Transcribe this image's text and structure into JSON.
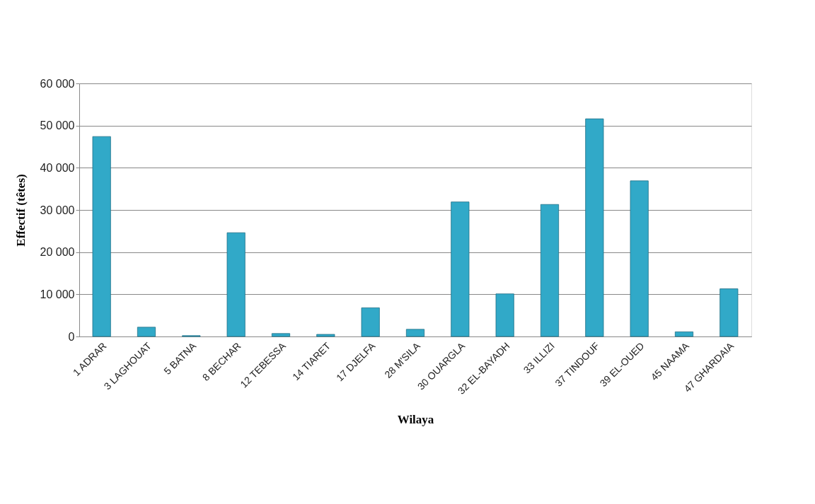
{
  "chart_data": {
    "type": "bar",
    "xlabel": "Wilaya",
    "ylabel": "Effectif (têtes)",
    "categories": [
      "1 ADRAR",
      "3 LAGHOUAT",
      "5 BATNA",
      "8 BECHAR",
      "12 TEBESSA",
      "14 TIARET",
      "17 DJELFA",
      "28 M'SILA",
      "30 OUARGLA",
      "32 EL-BAYADH",
      "33 ILLIZI",
      "37 TINDOUF",
      "39 EL-OUED",
      "45 NAAMA",
      "47 GHARDAIA"
    ],
    "values": [
      47400,
      2200,
      200,
      24600,
      700,
      500,
      6800,
      1700,
      31900,
      10100,
      31300,
      51600,
      36900,
      1100,
      11300
    ],
    "color": "#31a9c8",
    "ylim": [
      0,
      60000
    ],
    "yticks": [
      0,
      {
        "value": 10000,
        "label": "10 000"
      },
      {
        "value": 20000,
        "label": "20 000"
      },
      {
        "value": 30000,
        "label": "30 000"
      },
      {
        "value": 40000,
        "label": "40 000"
      },
      {
        "value": 50000,
        "label": "50 000"
      },
      {
        "value": 60000,
        "label": "60 000"
      }
    ],
    "grid": "y"
  }
}
